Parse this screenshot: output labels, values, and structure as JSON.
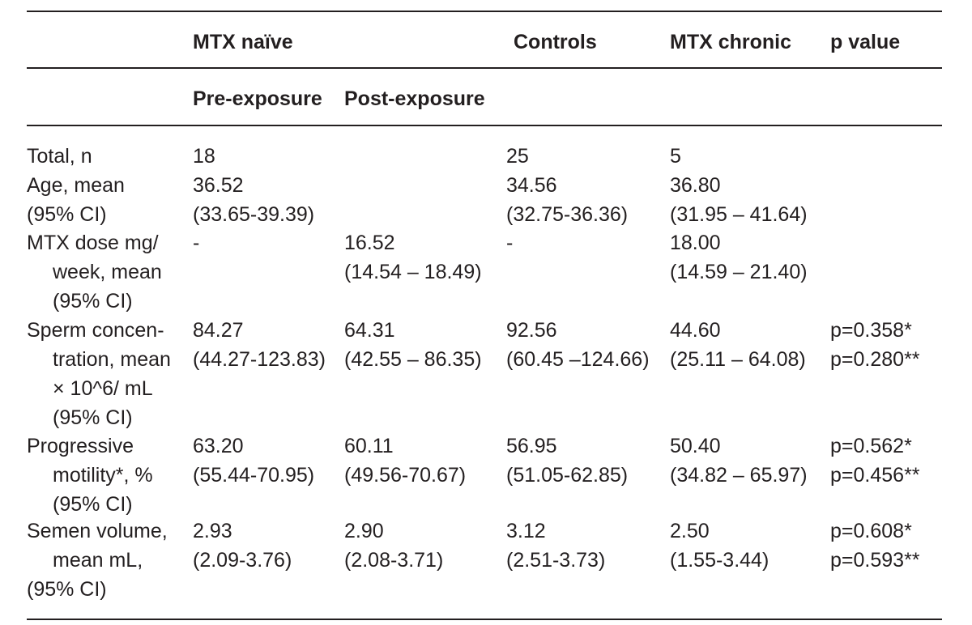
{
  "header": {
    "mtx_naive": "MTX naïve",
    "controls": "Controls",
    "mtx_chronic": "MTX chronic",
    "p_value": "p value",
    "pre_exposure": "Pre-exposure",
    "post_exposure": "Post-exposure"
  },
  "rows": [
    {
      "label": [
        "Total, n"
      ],
      "pre": [
        "18"
      ],
      "post": [
        ""
      ],
      "controls": [
        "25"
      ],
      "chronic": [
        "5"
      ],
      "p": [
        ""
      ]
    },
    {
      "label": [
        "Age, mean",
        "(95% CI)"
      ],
      "pre": [
        "36.52",
        "(33.65-39.39)"
      ],
      "post": [
        "",
        ""
      ],
      "controls": [
        "34.56",
        "(32.75-36.36)"
      ],
      "chronic": [
        "36.80",
        "(31.95 – 41.64)"
      ],
      "p": [
        "",
        ""
      ]
    },
    {
      "label": [
        "MTX dose mg/",
        "week, mean",
        "(95% CI)"
      ],
      "pre": [
        "-"
      ],
      "post": [
        "16.52",
        "(14.54 – 18.49)"
      ],
      "controls": [
        "-"
      ],
      "chronic": [
        "18.00",
        "(14.59 – 21.40)"
      ],
      "p": [
        ""
      ]
    },
    {
      "label": [
        "Sperm concen-",
        "tration, mean",
        "× 10^6/ mL",
        "(95% CI)"
      ],
      "pre": [
        "84.27",
        "(44.27-123.83)"
      ],
      "post": [
        "64.31",
        "(42.55 – 86.35)"
      ],
      "controls": [
        "92.56",
        "(60.45 –124.66)"
      ],
      "chronic": [
        "44.60",
        "(25.11 – 64.08)"
      ],
      "p": [
        "p=0.358*",
        "p=0.280**"
      ]
    },
    {
      "label": [
        "Progressive",
        "motility*, %",
        "(95% CI)"
      ],
      "pre": [
        "63.20",
        "(55.44-70.95)"
      ],
      "post": [
        "60.11",
        "(49.56-70.67)"
      ],
      "controls": [
        "56.95",
        "(51.05-62.85)"
      ],
      "chronic": [
        "50.40",
        "(34.82 – 65.97)"
      ],
      "p": [
        "p=0.562*",
        "p=0.456**"
      ]
    },
    {
      "label": [
        "Semen volume,",
        "mean mL,",
        "(95% CI)"
      ],
      "pre": [
        "2.93",
        "(2.09-3.76)"
      ],
      "post": [
        "2.90",
        "(2.08-3.71)"
      ],
      "controls": [
        "3.12",
        "(2.51-3.73)"
      ],
      "chronic": [
        "2.50",
        "(1.55-3.44)"
      ],
      "p": [
        "p=0.608*",
        "p=0.593**"
      ]
    }
  ]
}
